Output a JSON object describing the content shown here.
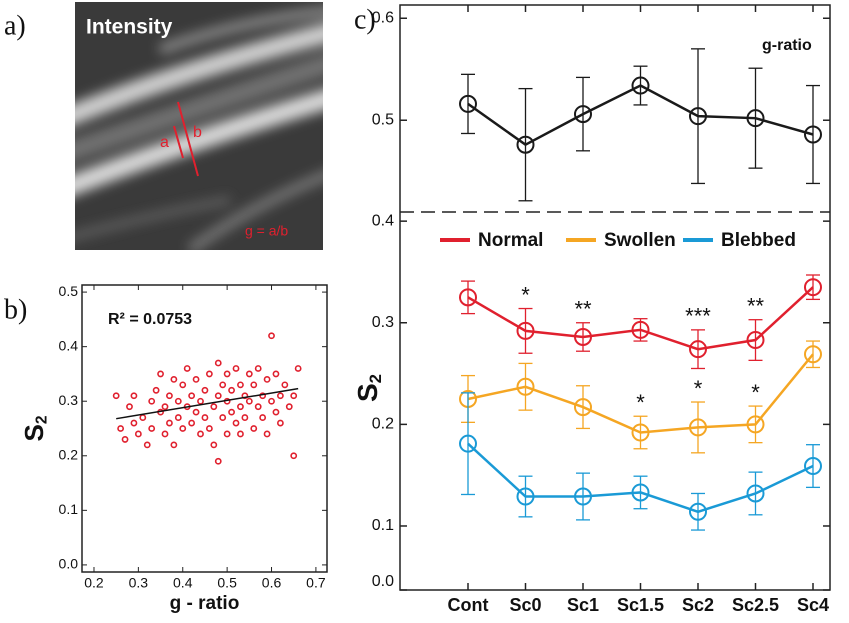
{
  "chart_data": [
    {
      "type": "image",
      "panel": "a)",
      "title": "Intensity",
      "annotations": [
        "a",
        "b",
        "g = a/b"
      ]
    },
    {
      "type": "scatter",
      "panel": "b)",
      "annotation": "R² = 0.0753",
      "xlabel": "g - ratio",
      "ylabel": "S",
      "ylabel_sub": "2",
      "xlim": [
        0.173,
        0.725
      ],
      "ylim": [
        -0.013,
        0.513
      ],
      "xticks": [
        0.2,
        0.3,
        0.4,
        0.5,
        0.6,
        0.7
      ],
      "yticks": [
        {
          "value": 0,
          "label": "0.0"
        },
        0.1,
        0.2,
        0.3,
        0.4,
        0.5
      ],
      "color": "#e0202e",
      "x": [
        0.25,
        0.26,
        0.27,
        0.28,
        0.29,
        0.29,
        0.3,
        0.31,
        0.32,
        0.33,
        0.33,
        0.34,
        0.35,
        0.35,
        0.36,
        0.36,
        0.37,
        0.37,
        0.38,
        0.38,
        0.39,
        0.39,
        0.4,
        0.4,
        0.41,
        0.41,
        0.42,
        0.42,
        0.43,
        0.43,
        0.44,
        0.44,
        0.45,
        0.45,
        0.46,
        0.46,
        0.47,
        0.47,
        0.48,
        0.48,
        0.48,
        0.49,
        0.49,
        0.5,
        0.5,
        0.5,
        0.51,
        0.51,
        0.52,
        0.52,
        0.53,
        0.53,
        0.53,
        0.54,
        0.54,
        0.55,
        0.55,
        0.56,
        0.56,
        0.57,
        0.57,
        0.58,
        0.58,
        0.59,
        0.59,
        0.6,
        0.6,
        0.61,
        0.61,
        0.62,
        0.62,
        0.63,
        0.64,
        0.65,
        0.65,
        0.66
      ],
      "y": [
        0.31,
        0.25,
        0.23,
        0.29,
        0.26,
        0.31,
        0.24,
        0.27,
        0.22,
        0.3,
        0.25,
        0.32,
        0.28,
        0.35,
        0.24,
        0.29,
        0.31,
        0.26,
        0.34,
        0.22,
        0.27,
        0.3,
        0.25,
        0.33,
        0.29,
        0.36,
        0.26,
        0.31,
        0.28,
        0.34,
        0.24,
        0.3,
        0.27,
        0.32,
        0.25,
        0.35,
        0.29,
        0.22,
        0.31,
        0.37,
        0.19,
        0.27,
        0.33,
        0.24,
        0.3,
        0.35,
        0.28,
        0.32,
        0.26,
        0.36,
        0.29,
        0.24,
        0.33,
        0.31,
        0.27,
        0.35,
        0.3,
        0.25,
        0.33,
        0.29,
        0.36,
        0.27,
        0.31,
        0.34,
        0.24,
        0.3,
        0.42,
        0.28,
        0.35,
        0.31,
        0.26,
        0.33,
        0.29,
        0.2,
        0.31,
        0.36
      ],
      "fit": {
        "x": [
          0.25,
          0.66
        ],
        "y": [
          0.268,
          0.323
        ]
      }
    },
    {
      "type": "line",
      "panel": "c)",
      "categories": [
        "Cont",
        "Sc0",
        "Sc1",
        "Sc1.5",
        "Sc2",
        "Sc2.5",
        "Sc4"
      ],
      "upper": {
        "ylim": [
          0.41,
          0.613
        ],
        "yticks": [
          0.5,
          0.6
        ],
        "series": [
          {
            "name": "g-ratio",
            "color": "#1a1a1a",
            "values": [
              0.516,
              0.476,
              0.506,
              0.534,
              0.504,
              0.502,
              0.486
            ],
            "errors": [
              0.029,
              0.055,
              0.036,
              0.019,
              0.066,
              0.049,
              0.048
            ]
          }
        ]
      },
      "lower": {
        "ylim": [
          0.037,
          0.409
        ],
        "axis_break": true,
        "ylabel": "S",
        "ylabel_sub": "2",
        "yticks": [
          {
            "value": 0,
            "label": "0.0"
          },
          0.1,
          0.2,
          0.3,
          0.4
        ],
        "series": [
          {
            "name": "Normal",
            "color": "#e0202e",
            "values": [
              0.325,
              0.292,
              0.286,
              0.293,
              0.274,
              0.283,
              0.335
            ],
            "errors": [
              0.016,
              0.022,
              0.014,
              0.011,
              0.019,
              0.02,
              0.012
            ],
            "stars": [
              null,
              "*",
              "**",
              null,
              "***",
              "**",
              null
            ]
          },
          {
            "name": "Swollen",
            "color": "#f5a623",
            "values": [
              0.225,
              0.237,
              0.217,
              0.192,
              0.197,
              0.2,
              0.269
            ],
            "errors": [
              0.023,
              0.023,
              0.021,
              0.016,
              0.025,
              0.018,
              0.013
            ],
            "stars": [
              null,
              null,
              null,
              "*",
              "*",
              "*",
              null
            ]
          },
          {
            "name": "Blebbed",
            "color": "#1a9ad6",
            "values": [
              0.181,
              0.129,
              0.129,
              0.133,
              0.114,
              0.132,
              0.159
            ],
            "errors": [
              0.05,
              0.02,
              0.023,
              0.016,
              0.018,
              0.021,
              0.021
            ]
          }
        ]
      }
    }
  ]
}
